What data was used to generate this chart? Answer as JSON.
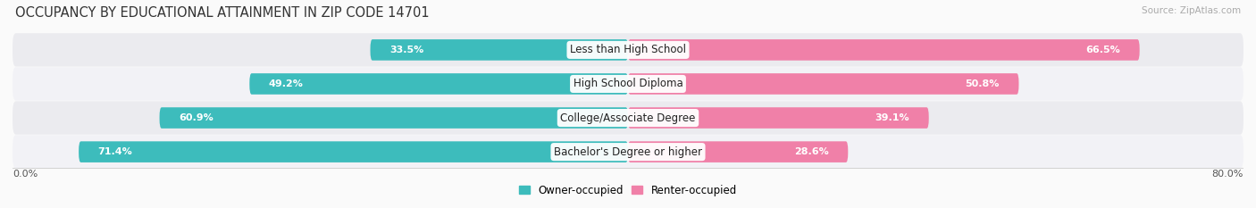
{
  "title": "OCCUPANCY BY EDUCATIONAL ATTAINMENT IN ZIP CODE 14701",
  "source": "Source: ZipAtlas.com",
  "categories": [
    "Less than High School",
    "High School Diploma",
    "College/Associate Degree",
    "Bachelor's Degree or higher"
  ],
  "owner_values": [
    33.5,
    49.2,
    60.9,
    71.4
  ],
  "renter_values": [
    66.5,
    50.8,
    39.1,
    28.6
  ],
  "owner_color": "#3DBCBC",
  "renter_color": "#F080A8",
  "row_bg_color": "#E8E8EC",
  "background_color": "#FAFAFA",
  "title_fontsize": 10.5,
  "source_fontsize": 7.5,
  "value_fontsize": 8,
  "cat_fontsize": 8.5,
  "legend_fontsize": 8.5,
  "axis_label_left": "0.0%",
  "axis_label_right": "80.0%",
  "xlim_left": -80,
  "xlim_right": 80,
  "bar_height": 0.62,
  "bar_gap": 1.0,
  "n_rows": 4
}
